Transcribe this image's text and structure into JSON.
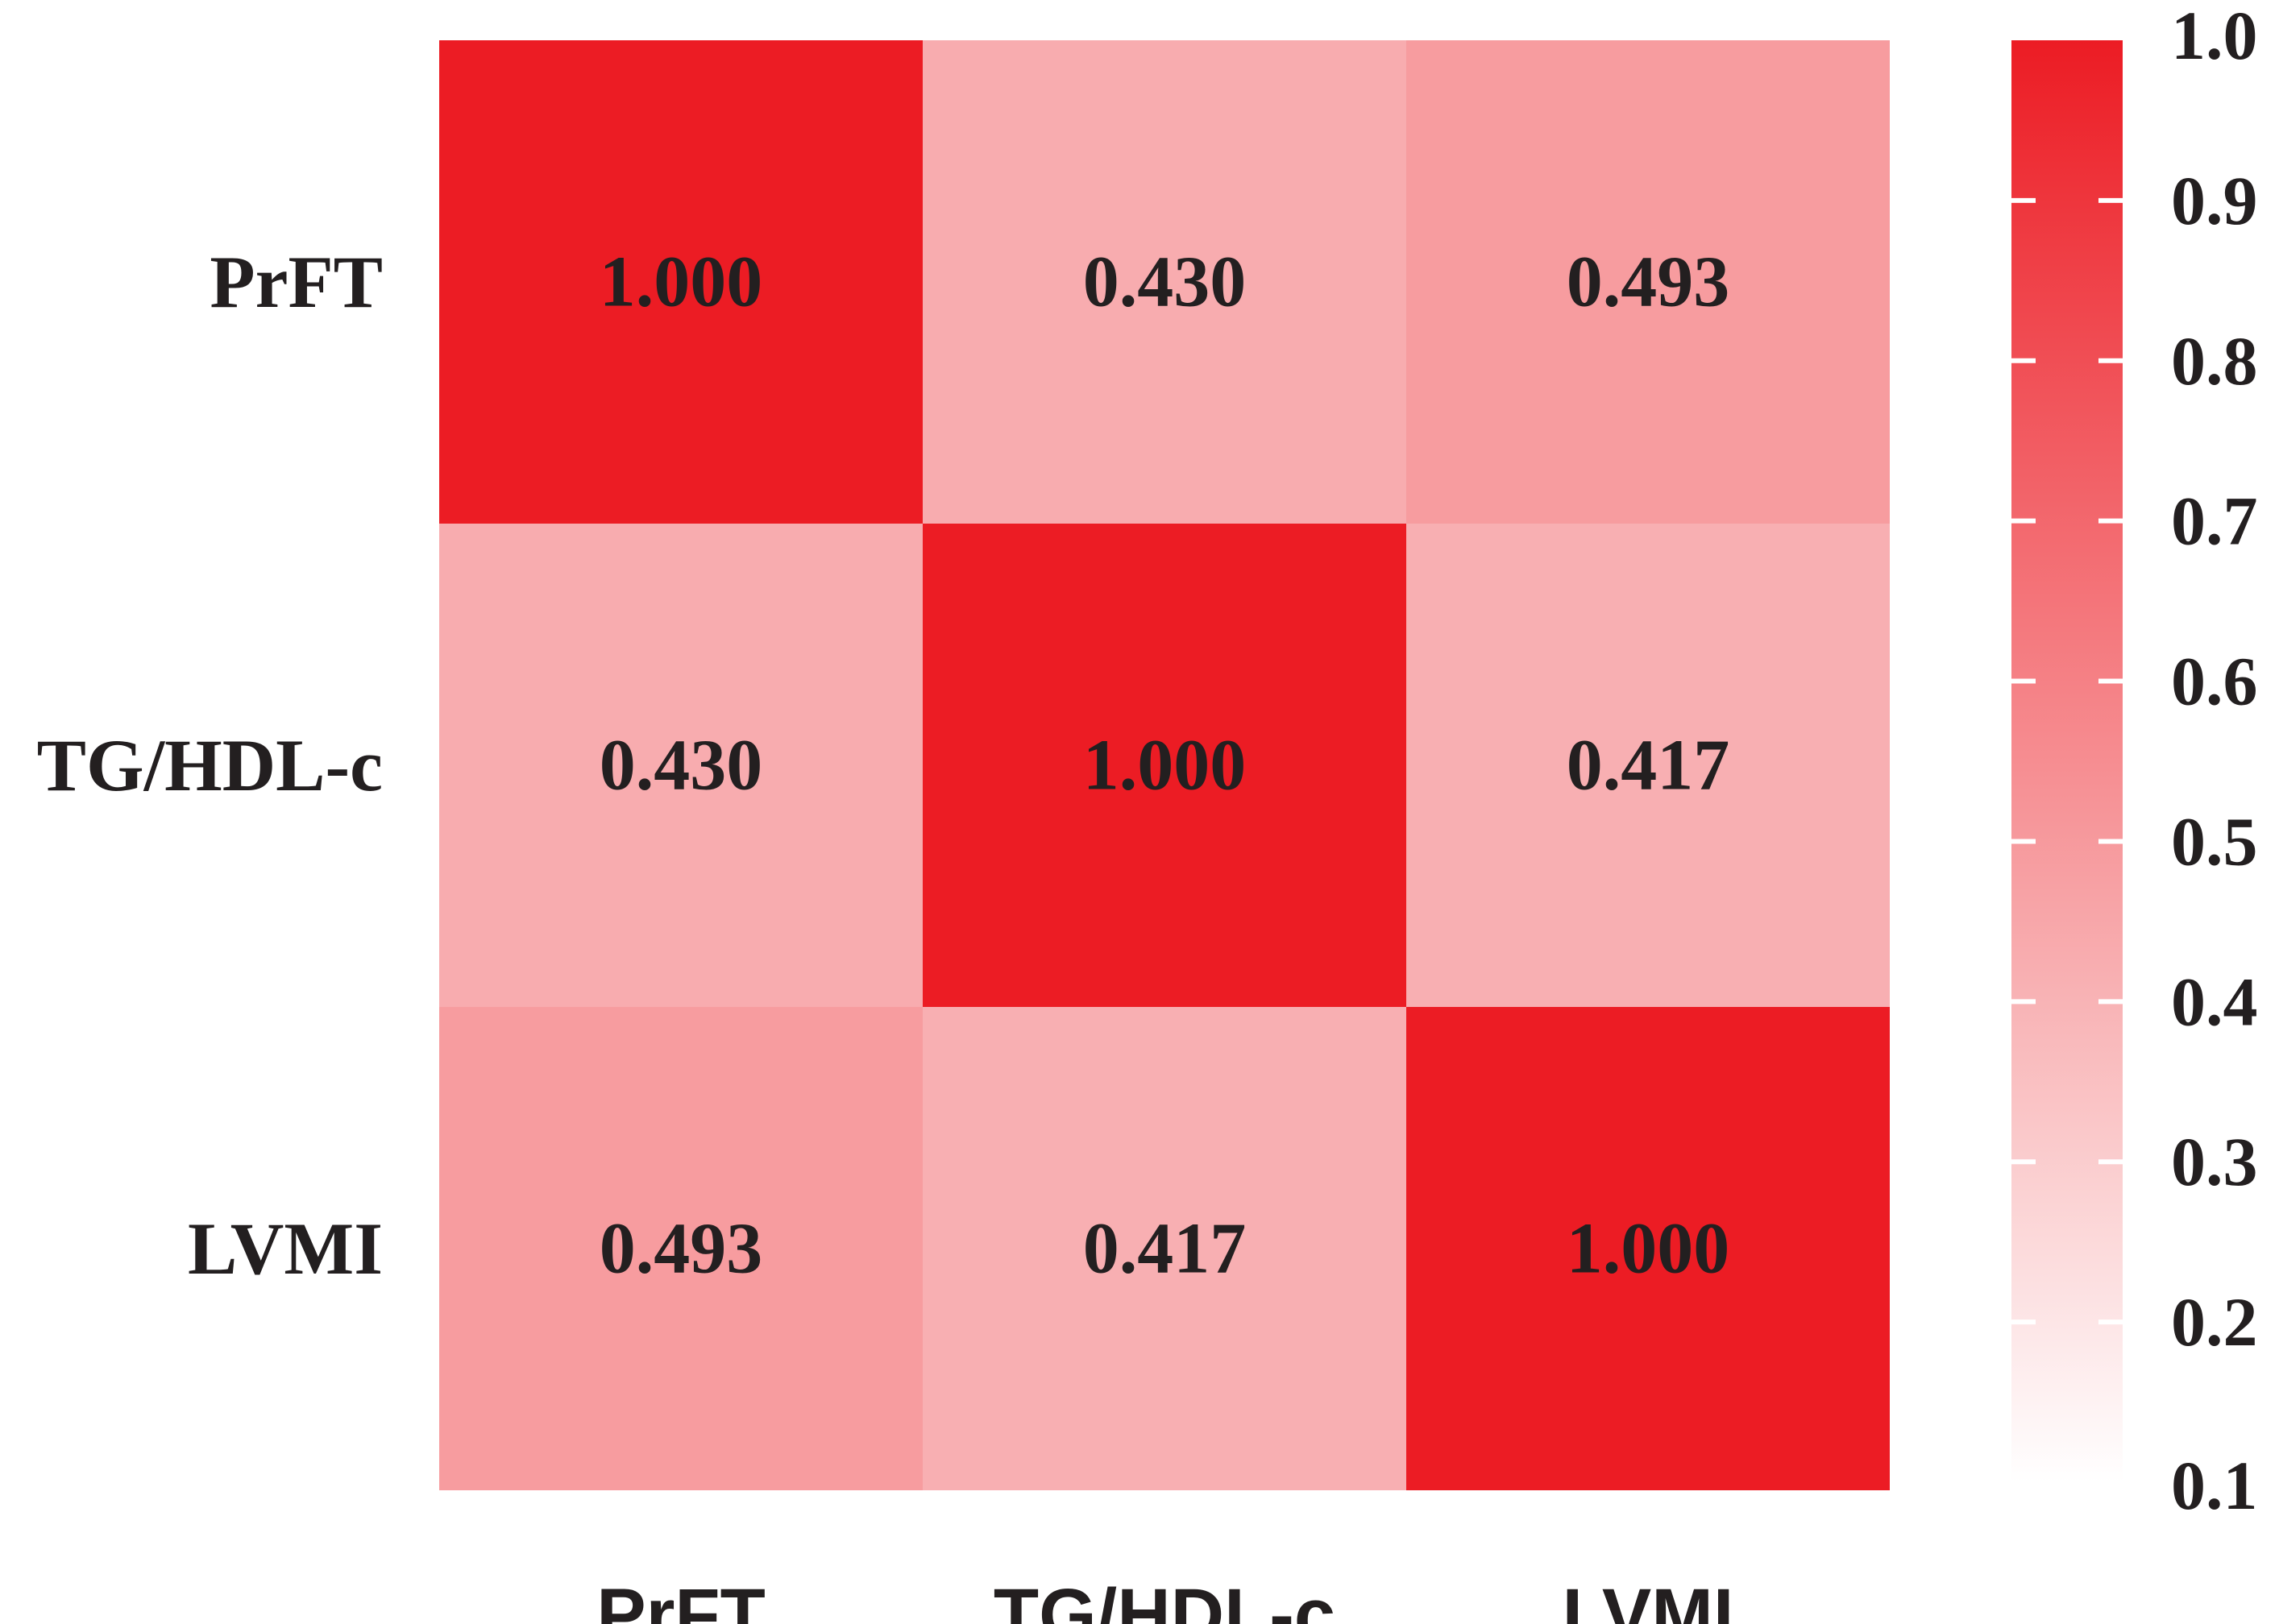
{
  "chart_data": {
    "type": "heatmap",
    "title": "",
    "xlabel": "",
    "ylabel": "",
    "rows": [
      "PrFT",
      "TG/HDL-c",
      "LVMI"
    ],
    "columns": [
      "PrFT",
      "TG/HDL-c",
      "LVMI"
    ],
    "values": [
      [
        1.0,
        0.43,
        0.493
      ],
      [
        0.43,
        1.0,
        0.417
      ],
      [
        0.493,
        0.417,
        1.0
      ]
    ],
    "value_labels": [
      [
        "1.000",
        "0.430",
        "0.493"
      ],
      [
        "0.430",
        "1.000",
        "0.417"
      ],
      [
        "0.493",
        "0.417",
        "1.000"
      ]
    ],
    "colorbar": {
      "min": 0.1,
      "max": 1.0,
      "ticks": [
        1.0,
        0.9,
        0.8,
        0.7,
        0.6,
        0.5,
        0.4,
        0.3,
        0.2,
        0.1
      ],
      "tick_labels": [
        "1.0",
        "0.9",
        "0.8",
        "0.7",
        "0.6",
        "0.5",
        "0.4",
        "0.3",
        "0.2",
        "0.1"
      ],
      "color_low": "#ffffff",
      "color_high": "#ec1c24",
      "placement": "right"
    },
    "grid": false
  }
}
